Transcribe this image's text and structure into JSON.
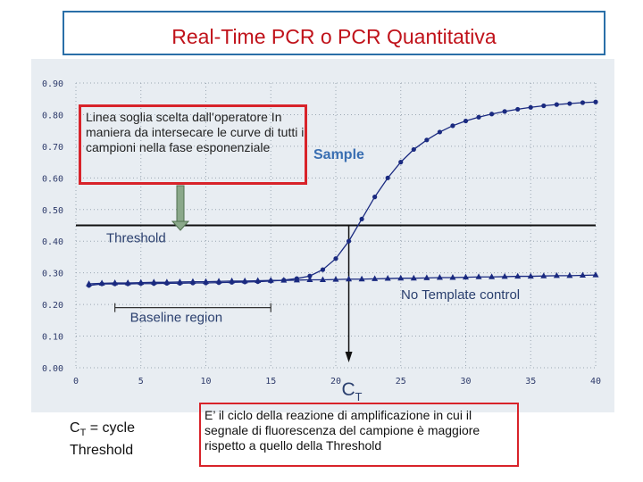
{
  "slide": {
    "title": "Real-Time PCR o PCR Quantitativa",
    "note": "Linea soglia scelta dall’operatore In maniera da intersecare le curve di tutti i campioni nella fase esponenziale",
    "ct_definition_lines": [
      "C",
      "T",
      " = cycle",
      "Threshold"
    ],
    "explanation": "E’ il ciclo della reazione di amplificazione in cui il segnale di fluorescenza del campione è maggiore rispetto a quello della Threshold"
  },
  "chart_data": {
    "type": "line",
    "xlim": [
      0,
      40
    ],
    "ylim": [
      0,
      0.9
    ],
    "x_ticks": [
      "0",
      "5",
      "10",
      "15",
      "20",
      "25",
      "30",
      "35",
      "40"
    ],
    "y_ticks": [
      "0.00",
      "0.10",
      "0.20",
      "0.30",
      "0.40",
      "0.50",
      "0.60",
      "0.70",
      "0.80",
      "0.90"
    ],
    "threshold": 0.45,
    "threshold_label": "Threshold",
    "ct_value": 21,
    "ct_label": [
      "C",
      "T"
    ],
    "baseline_region": [
      3,
      15
    ],
    "baseline_label": "Baseline region",
    "series": [
      {
        "name": "Sample",
        "marker": "circle",
        "color": "#1a2a80",
        "x": [
          1,
          2,
          3,
          4,
          5,
          6,
          7,
          8,
          9,
          10,
          11,
          12,
          13,
          14,
          15,
          16,
          17,
          18,
          19,
          20,
          21,
          22,
          23,
          24,
          25,
          26,
          27,
          28,
          29,
          30,
          31,
          32,
          33,
          34,
          35,
          36,
          37,
          38,
          39,
          40
        ],
        "values": [
          0.26,
          0.265,
          0.265,
          0.265,
          0.266,
          0.266,
          0.267,
          0.267,
          0.268,
          0.268,
          0.269,
          0.27,
          0.271,
          0.272,
          0.274,
          0.277,
          0.282,
          0.29,
          0.31,
          0.345,
          0.4,
          0.47,
          0.54,
          0.6,
          0.65,
          0.69,
          0.72,
          0.745,
          0.765,
          0.78,
          0.792,
          0.802,
          0.81,
          0.817,
          0.823,
          0.828,
          0.832,
          0.835,
          0.838,
          0.84
        ]
      },
      {
        "name": "No Template control",
        "marker": "triangle",
        "color": "#1a2a80",
        "x": [
          1,
          2,
          3,
          4,
          5,
          6,
          7,
          8,
          9,
          10,
          11,
          12,
          13,
          14,
          15,
          16,
          17,
          18,
          19,
          20,
          21,
          22,
          23,
          24,
          25,
          26,
          27,
          28,
          29,
          30,
          31,
          32,
          33,
          34,
          35,
          36,
          37,
          38,
          39,
          40
        ],
        "values": [
          0.265,
          0.267,
          0.268,
          0.268,
          0.269,
          0.27,
          0.27,
          0.271,
          0.272,
          0.272,
          0.273,
          0.274,
          0.274,
          0.275,
          0.276,
          0.276,
          0.277,
          0.278,
          0.278,
          0.279,
          0.28,
          0.28,
          0.281,
          0.282,
          0.283,
          0.283,
          0.284,
          0.285,
          0.285,
          0.286,
          0.287,
          0.287,
          0.288,
          0.289,
          0.289,
          0.29,
          0.291,
          0.291,
          0.292,
          0.293
        ]
      }
    ]
  }
}
